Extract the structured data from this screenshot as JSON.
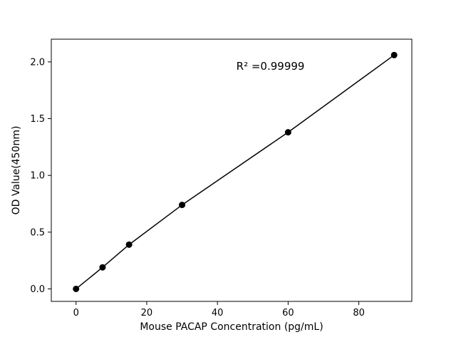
{
  "figure": {
    "background": "#ffffff"
  },
  "chart_data": {
    "type": "scatter",
    "x": [
      0,
      7.5,
      15,
      30,
      60,
      90
    ],
    "y": [
      0.0,
      0.19,
      0.39,
      0.74,
      1.38,
      2.06
    ],
    "line_through_points": true,
    "title": "",
    "xlabel": "Mouse PACAP Concentration (pg/mL)",
    "ylabel": "OD Value(450nm)",
    "xlim": [
      -7,
      95
    ],
    "ylim": [
      -0.11,
      2.2
    ],
    "xticks": [
      0,
      20,
      40,
      60,
      80
    ],
    "yticks": [
      0.0,
      0.5,
      1.0,
      1.5,
      2.0
    ],
    "ytick_decimals": 1,
    "annotation": {
      "text": "R² =0.99999",
      "x": 55,
      "y": 1.93
    },
    "grid": false,
    "legend": null,
    "marker_color": "#000000",
    "line_color": "#000000",
    "axis_color": "#000000"
  }
}
